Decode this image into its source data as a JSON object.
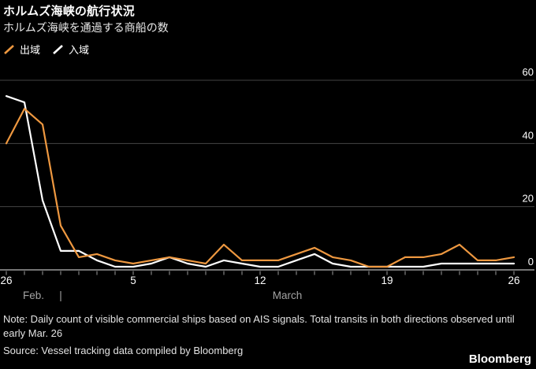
{
  "header": {
    "title": "ホルムズ海峡の航行状況",
    "subtitle": "ホルムズ海峡を通過する商船の数"
  },
  "legend": {
    "items": [
      {
        "key": "exit",
        "label": "出域",
        "color": "#EE9840"
      },
      {
        "key": "enter",
        "label": "入域",
        "color": "#FFFFFF"
      }
    ]
  },
  "chart_data": {
    "type": "line",
    "title": "ホルムズ海峡の航行状況",
    "subtitle": "ホルムズ海峡を通過する商船の数",
    "x_description": "daily, Feb. 26 through Mar. 26",
    "ylim": [
      0,
      60
    ],
    "yticks": [
      0,
      20,
      40,
      60
    ],
    "grid": "horizontal",
    "legend_position": "top-left",
    "xticks": [
      {
        "pos": 0,
        "label": "26"
      },
      {
        "pos": 7,
        "label": "5"
      },
      {
        "pos": 14,
        "label": "12"
      },
      {
        "pos": 21,
        "label": "19"
      },
      {
        "pos": 28,
        "label": "26"
      }
    ],
    "month_labels": [
      {
        "pos": 1.5,
        "label": "Feb."
      },
      {
        "pos": 3,
        "label": "|"
      },
      {
        "pos": 15.5,
        "label": "March"
      }
    ],
    "series": [
      {
        "key": "exit",
        "name": "出域",
        "color": "#EE9840",
        "values": [
          40,
          51,
          46,
          14,
          4,
          5,
          3,
          2,
          3,
          4,
          3,
          2,
          8,
          3,
          3,
          3,
          5,
          7,
          4,
          3,
          1,
          1,
          4,
          4,
          5,
          8,
          3,
          3,
          4
        ]
      },
      {
        "key": "enter",
        "name": "入域",
        "color": "#FFFFFF",
        "values": [
          55,
          53,
          22,
          6,
          6,
          3,
          1,
          1,
          2,
          4,
          2,
          1,
          3,
          2,
          1,
          1,
          3,
          5,
          2,
          1,
          1,
          1,
          1,
          1,
          2,
          2,
          2,
          2,
          2
        ]
      }
    ]
  },
  "colors": {
    "background": "#000000",
    "gridline": "#454545",
    "zero_line": "#9a9a9a",
    "tick": "#9a9a9a",
    "axis_label": "#ffffff",
    "x_tick_label": "#ffffff",
    "month_label": "#a3a3a3"
  },
  "footer": {
    "note": "Note: Daily count of visible commercial ships based on AIS signals. Total transits in both directions observed until early Mar. 26",
    "source": "Source: Vessel tracking data compiled by Bloomberg",
    "brand": "Bloomberg"
  }
}
